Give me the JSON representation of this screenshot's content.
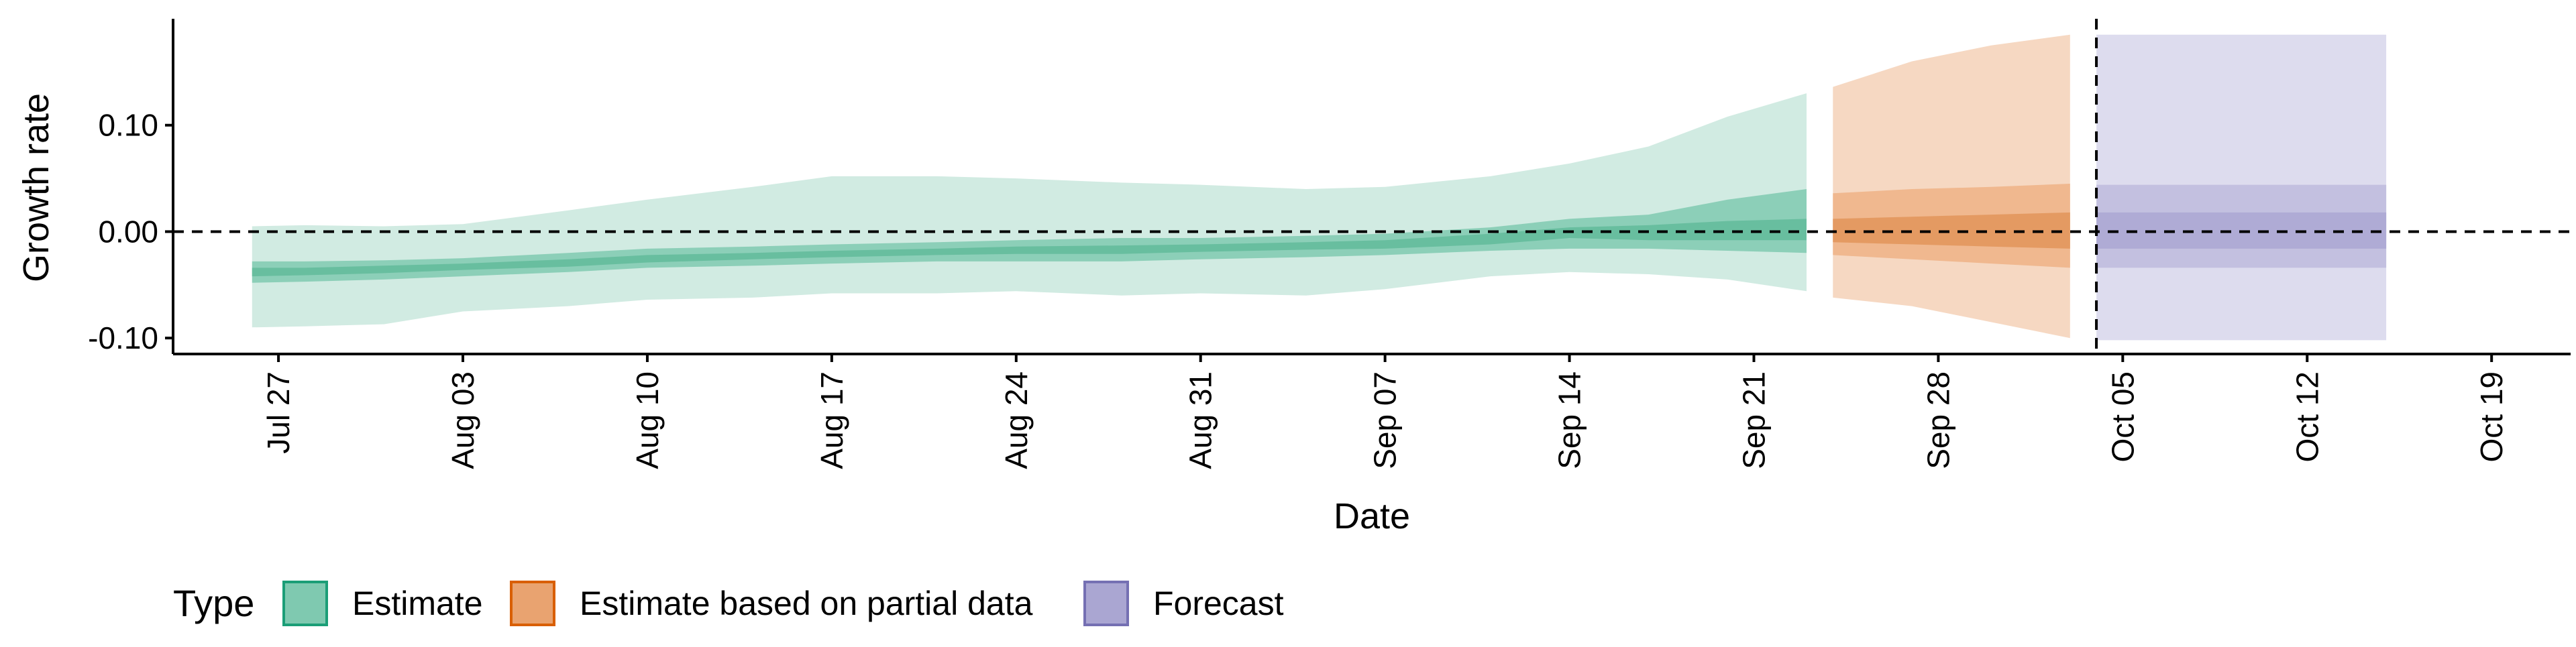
{
  "chart_data": {
    "type": "area",
    "xlabel": "Date",
    "ylabel": "Growth rate",
    "ylim": [
      -0.115,
      0.2
    ],
    "xlim": [
      "2020-07-23",
      "2020-10-22"
    ],
    "x_ticks": [
      "2020-07-27",
      "2020-08-03",
      "2020-08-10",
      "2020-08-17",
      "2020-08-24",
      "2020-08-31",
      "2020-09-07",
      "2020-09-14",
      "2020-09-21",
      "2020-09-28",
      "2020-10-05",
      "2020-10-12",
      "2020-10-19"
    ],
    "x_tick_labels": [
      "Jul 27",
      "Aug 03",
      "Aug 10",
      "Aug 17",
      "Aug 24",
      "Aug 31",
      "Sep 07",
      "Sep 14",
      "Sep 21",
      "Sep 28",
      "Oct 05",
      "Oct 12",
      "Oct 19"
    ],
    "y_ticks": [
      -0.1,
      0.0,
      0.1
    ],
    "y_tick_labels": [
      "-0.10",
      "0.00",
      "0.10"
    ],
    "grid": false,
    "reference_lines": {
      "horizontal_y": 0.0,
      "vertical_date": "2020-10-04"
    },
    "legend": {
      "title": "Type",
      "position": "bottom-left",
      "entries": [
        {
          "label": "Estimate",
          "fill": "#7fc9b0",
          "border": "#1b9e77"
        },
        {
          "label": "Estimate based on partial data",
          "fill": "#e9a370",
          "border": "#d95f02"
        },
        {
          "label": "Forecast",
          "fill": "#aaa6d2",
          "border": "#7570b3"
        }
      ]
    },
    "series": [
      {
        "name": "Estimate",
        "colors": {
          "outer": "#d1ebe2",
          "mid": "#8ccfb8",
          "inner": "#68be9f"
        },
        "points": [
          {
            "x": "2020-07-26",
            "lo90": -0.09,
            "hi90": 0.005,
            "lo50": -0.048,
            "hi50": -0.028,
            "lo20": -0.042,
            "hi20": -0.034
          },
          {
            "x": "2020-07-28",
            "lo90": -0.089,
            "hi90": 0.006,
            "lo50": -0.047,
            "hi50": -0.028,
            "lo20": -0.041,
            "hi20": -0.034
          },
          {
            "x": "2020-07-31",
            "lo90": -0.087,
            "hi90": 0.005,
            "lo50": -0.045,
            "hi50": -0.027,
            "lo20": -0.039,
            "hi20": -0.032
          },
          {
            "x": "2020-08-03",
            "lo90": -0.075,
            "hi90": 0.007,
            "lo50": -0.042,
            "hi50": -0.025,
            "lo20": -0.036,
            "hi20": -0.03
          },
          {
            "x": "2020-08-07",
            "lo90": -0.07,
            "hi90": 0.02,
            "lo50": -0.038,
            "hi50": -0.02,
            "lo20": -0.033,
            "hi20": -0.026
          },
          {
            "x": "2020-08-10",
            "lo90": -0.064,
            "hi90": 0.03,
            "lo50": -0.034,
            "hi50": -0.016,
            "lo20": -0.029,
            "hi20": -0.022
          },
          {
            "x": "2020-08-14",
            "lo90": -0.062,
            "hi90": 0.042,
            "lo50": -0.032,
            "hi50": -0.014,
            "lo20": -0.026,
            "hi20": -0.02
          },
          {
            "x": "2020-08-17",
            "lo90": -0.058,
            "hi90": 0.052,
            "lo50": -0.03,
            "hi50": -0.012,
            "lo20": -0.024,
            "hi20": -0.018
          },
          {
            "x": "2020-08-21",
            "lo90": -0.058,
            "hi90": 0.052,
            "lo50": -0.028,
            "hi50": -0.01,
            "lo20": -0.022,
            "hi20": -0.016
          },
          {
            "x": "2020-08-24",
            "lo90": -0.056,
            "hi90": 0.05,
            "lo50": -0.028,
            "hi50": -0.008,
            "lo20": -0.021,
            "hi20": -0.014
          },
          {
            "x": "2020-08-28",
            "lo90": -0.06,
            "hi90": 0.046,
            "lo50": -0.028,
            "hi50": -0.006,
            "lo20": -0.021,
            "hi20": -0.013
          },
          {
            "x": "2020-08-31",
            "lo90": -0.058,
            "hi90": 0.044,
            "lo50": -0.026,
            "hi50": -0.006,
            "lo20": -0.019,
            "hi20": -0.012
          },
          {
            "x": "2020-09-04",
            "lo90": -0.06,
            "hi90": 0.04,
            "lo50": -0.024,
            "hi50": -0.004,
            "lo20": -0.017,
            "hi20": -0.01
          },
          {
            "x": "2020-09-07",
            "lo90": -0.054,
            "hi90": 0.042,
            "lo50": -0.022,
            "hi50": -0.002,
            "lo20": -0.016,
            "hi20": -0.008
          },
          {
            "x": "2020-09-11",
            "lo90": -0.042,
            "hi90": 0.052,
            "lo50": -0.018,
            "hi50": 0.004,
            "lo20": -0.012,
            "hi20": -0.002
          },
          {
            "x": "2020-09-14",
            "lo90": -0.038,
            "hi90": 0.064,
            "lo50": -0.016,
            "hi50": 0.012,
            "lo20": -0.006,
            "hi20": 0.004
          },
          {
            "x": "2020-09-17",
            "lo90": -0.04,
            "hi90": 0.08,
            "lo50": -0.016,
            "hi50": 0.016,
            "lo20": -0.008,
            "hi20": 0.006
          },
          {
            "x": "2020-09-20",
            "lo90": -0.045,
            "hi90": 0.108,
            "lo50": -0.018,
            "hi50": 0.03,
            "lo20": -0.008,
            "hi20": 0.01
          },
          {
            "x": "2020-09-23",
            "lo90": -0.056,
            "hi90": 0.13,
            "lo50": -0.02,
            "hi50": 0.04,
            "lo20": -0.008,
            "hi20": 0.012
          }
        ]
      },
      {
        "name": "Estimate based on partial data",
        "colors": {
          "outer": "#f6d8c2",
          "mid": "#f0b88f",
          "inner": "#e49a62"
        },
        "points": [
          {
            "x": "2020-09-24",
            "lo90": -0.062,
            "hi90": 0.136,
            "lo50": -0.022,
            "hi50": 0.036,
            "lo20": -0.01,
            "hi20": 0.012
          },
          {
            "x": "2020-09-27",
            "lo90": -0.07,
            "hi90": 0.16,
            "lo50": -0.026,
            "hi50": 0.04,
            "lo20": -0.012,
            "hi20": 0.014
          },
          {
            "x": "2020-09-30",
            "lo90": -0.085,
            "hi90": 0.175,
            "lo50": -0.03,
            "hi50": 0.042,
            "lo20": -0.014,
            "hi20": 0.016
          },
          {
            "x": "2020-10-03",
            "lo90": -0.1,
            "hi90": 0.185,
            "lo50": -0.034,
            "hi50": 0.045,
            "lo20": -0.016,
            "hi20": 0.018
          }
        ]
      },
      {
        "name": "Forecast",
        "colors": {
          "outer": "#dddcee",
          "mid": "#c3c0e0",
          "inner": "#afabd5"
        },
        "points": [
          {
            "x": "2020-10-04",
            "lo90": -0.102,
            "hi90": 0.185,
            "lo50": -0.034,
            "hi50": 0.044,
            "lo20": -0.016,
            "hi20": 0.018
          },
          {
            "x": "2020-10-15",
            "lo90": -0.102,
            "hi90": 0.185,
            "lo50": -0.034,
            "hi50": 0.044,
            "lo20": -0.016,
            "hi20": 0.018
          }
        ]
      }
    ]
  }
}
